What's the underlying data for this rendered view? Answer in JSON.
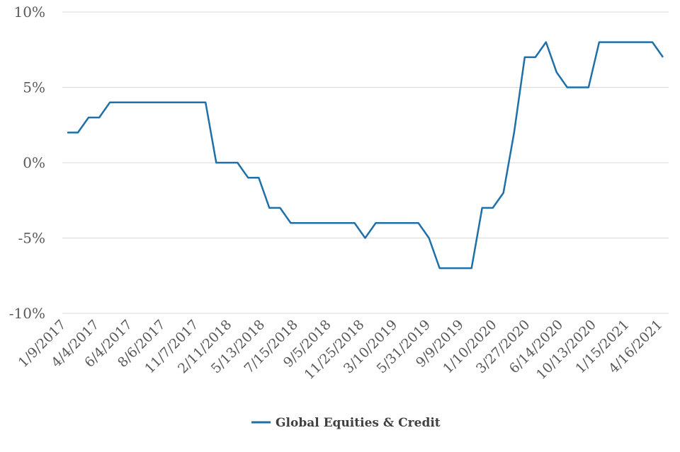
{
  "chart_data": {
    "type": "line",
    "xlabel": "",
    "ylabel": "",
    "ylim": [
      -10,
      10
    ],
    "yticks": [
      "10%",
      "5%",
      "0%",
      "-5%",
      "-10%"
    ],
    "ytick_values": [
      10,
      5,
      0,
      -5,
      -10
    ],
    "x_tick_labels": [
      "1/9/2017",
      "4/4/2017",
      "6/4/2017",
      "8/6/2017",
      "11/7/2017",
      "2/11/2018",
      "5/13/2018",
      "7/15/2018",
      "9/5/2018",
      "11/25/2018",
      "3/10/2019",
      "5/31/2019",
      "9/9/2019",
      "1/10/2020",
      "3/27/2020",
      "6/14/2020",
      "10/13/2020",
      "1/15/2021",
      "4/16/2021"
    ],
    "grid": true,
    "legend_position": "bottom",
    "line_color": "#1f6fa8",
    "series": [
      {
        "name": "Global Equities & Credit",
        "values": [
          2,
          2,
          3,
          3,
          4,
          4,
          4,
          4,
          4,
          4,
          4,
          4,
          4,
          4,
          0,
          0,
          0,
          -1,
          -1,
          -3,
          -3,
          -4,
          -4,
          -4,
          -4,
          -4,
          -4,
          -4,
          -5,
          -4,
          -4,
          -4,
          -4,
          -4,
          -5,
          -7,
          -7,
          -7,
          -7,
          -3,
          -3,
          -2,
          2,
          7,
          7,
          8,
          6,
          5,
          5,
          5,
          8,
          8,
          8,
          8,
          8,
          8,
          7
        ]
      }
    ]
  }
}
